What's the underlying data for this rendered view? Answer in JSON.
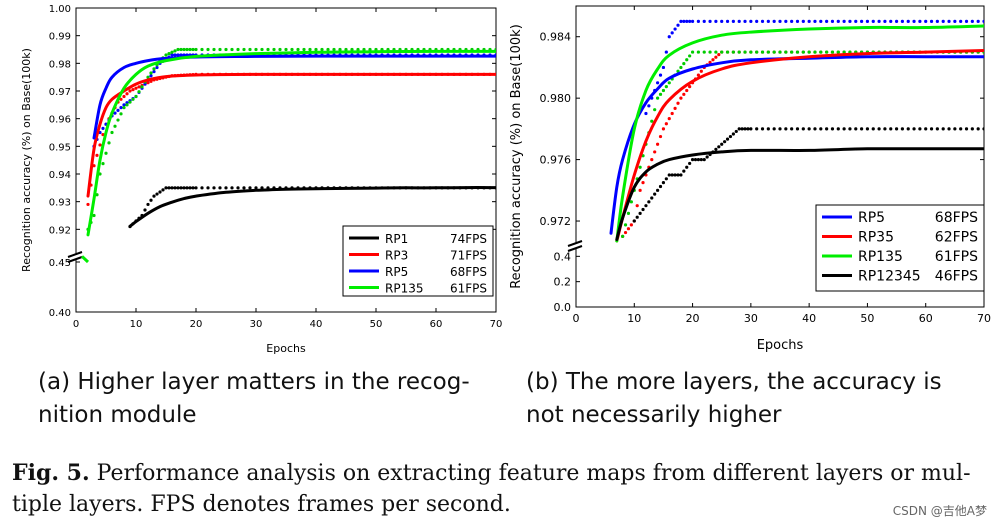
{
  "chart_data": [
    {
      "type": "line",
      "xlabel": "Epochs",
      "ylabel": "Recognition accuracy (%) on Base(100k)",
      "xlim": [
        0,
        70
      ],
      "x_ticks": [
        "0",
        "10",
        "20",
        "30",
        "40",
        "50",
        "60",
        "70"
      ],
      "y_upper_range": [
        0.91,
        1.0
      ],
      "y_upper_ticks": [
        "0.92",
        "0.93",
        "0.94",
        "0.95",
        "0.96",
        "0.97",
        "0.98",
        "0.99",
        "1.00"
      ],
      "y_lower_range": [
        0.4,
        0.45
      ],
      "y_lower_ticks": [
        "0.40",
        "0.45"
      ],
      "legend_position": "bottom-right",
      "grid": false,
      "series": [
        {
          "name": "RP1",
          "fps": "74FPS",
          "color": "#000000",
          "x": [
            9,
            10,
            12,
            14,
            16,
            18,
            20,
            25,
            30,
            35,
            40,
            45,
            50,
            55,
            60,
            65,
            70
          ],
          "values": [
            0.9211,
            0.9228,
            0.9258,
            0.9282,
            0.9298,
            0.9311,
            0.932,
            0.9334,
            0.9341,
            0.9345,
            0.9347,
            0.9348,
            0.9349,
            0.935,
            0.935,
            0.9351,
            0.9351
          ]
        },
        {
          "name": "RP3",
          "fps": "71FPS",
          "color": "#ff0000",
          "x": [
            2,
            3,
            4,
            5,
            6,
            8,
            10,
            12,
            15,
            20,
            30,
            40,
            50,
            60,
            70
          ],
          "values": [
            0.932,
            0.949,
            0.958,
            0.964,
            0.967,
            0.97,
            0.9725,
            0.974,
            0.9752,
            0.9758,
            0.976,
            0.976,
            0.976,
            0.976,
            0.976
          ]
        },
        {
          "name": "RP5",
          "fps": "68FPS",
          "color": "#0000ff",
          "x": [
            3,
            4,
            5,
            6,
            8,
            10,
            12,
            15,
            20,
            30,
            40,
            50,
            60,
            70
          ],
          "values": [
            0.953,
            0.965,
            0.971,
            0.975,
            0.9785,
            0.98,
            0.981,
            0.9818,
            0.9823,
            0.9825,
            0.9826,
            0.9826,
            0.9826,
            0.9826
          ]
        },
        {
          "name": "RP135",
          "fps": "61FPS",
          "color": "#00ee00",
          "x": [
            1,
            2,
            3,
            4,
            5,
            6,
            8,
            10,
            12,
            15,
            20,
            30,
            40,
            50,
            60,
            70
          ],
          "values": [
            0.4557,
            0.918,
            0.931,
            0.945,
            0.955,
            0.962,
            0.971,
            0.976,
            0.979,
            0.981,
            0.9825,
            0.9835,
            0.984,
            0.9842,
            0.9843,
            0.9843
          ]
        }
      ],
      "dotted_series": [
        {
          "color": "#000000",
          "x": [
            9,
            11,
            12,
            13,
            15,
            17,
            20,
            25,
            30,
            35,
            40,
            45,
            50,
            55,
            60,
            65,
            70
          ],
          "values": [
            0.921,
            0.925,
            0.929,
            0.932,
            0.935,
            0.935,
            0.935,
            0.935,
            0.935,
            0.935,
            0.935,
            0.935,
            0.935,
            0.935,
            0.935,
            0.935,
            0.935
          ]
        },
        {
          "color": "#ff0000",
          "x": [
            2,
            3,
            5,
            7,
            9,
            11,
            13,
            16,
            20,
            25,
            30,
            40,
            50,
            60,
            70
          ],
          "values": [
            0.929,
            0.943,
            0.958,
            0.966,
            0.97,
            0.972,
            0.974,
            0.9755,
            0.976,
            0.976,
            0.976,
            0.976,
            0.976,
            0.976,
            0.976
          ]
        },
        {
          "color": "#0000ff",
          "x": [
            3,
            4,
            5,
            6,
            8,
            10,
            12,
            14,
            16,
            20,
            30,
            40,
            50,
            60,
            70
          ],
          "values": [
            0.95,
            0.955,
            0.958,
            0.961,
            0.965,
            0.968,
            0.974,
            0.98,
            0.983,
            0.983,
            0.983,
            0.983,
            0.983,
            0.983,
            0.983
          ]
        },
        {
          "color": "#00cc00",
          "x": [
            2,
            3,
            4,
            6,
            8,
            10,
            12,
            14,
            15,
            17,
            20,
            30,
            40,
            50,
            60,
            70
          ],
          "values": [
            0.92,
            0.925,
            0.94,
            0.955,
            0.964,
            0.968,
            0.975,
            0.981,
            0.983,
            0.985,
            0.985,
            0.985,
            0.985,
            0.985,
            0.985,
            0.985
          ]
        }
      ],
      "subcaption": [
        "(a) Higher layer matters in the recog-",
        "nition module"
      ]
    },
    {
      "type": "line",
      "xlabel": "Epochs",
      "ylabel": "Recognition accuracy (%) on Base(100k)",
      "xlim": [
        0,
        70
      ],
      "x_ticks": [
        "0",
        "10",
        "20",
        "30",
        "40",
        "50",
        "60",
        "70"
      ],
      "y_upper_range": [
        0.9707,
        0.986
      ],
      "y_upper_ticks": [
        "0.972",
        "0.976",
        "0.980",
        "0.984"
      ],
      "y_lower_range": [
        0.0,
        0.45
      ],
      "y_lower_ticks": [
        "0.0",
        "0.2",
        "0.4"
      ],
      "legend_position": "bottom-right",
      "grid": false,
      "series": [
        {
          "name": "RP5",
          "fps": "68FPS",
          "color": "#0000ff",
          "x": [
            6,
            7,
            8,
            10,
            12,
            14,
            16,
            20,
            25,
            30,
            40,
            50,
            60,
            70
          ],
          "values": [
            0.9712,
            0.9742,
            0.976,
            0.9783,
            0.9797,
            0.9806,
            0.9813,
            0.9819,
            0.9823,
            0.9825,
            0.9826,
            0.9827,
            0.9827,
            0.9827
          ]
        },
        {
          "name": "RP35",
          "fps": "62FPS",
          "color": "#ff0000",
          "x": [
            7,
            8,
            10,
            12,
            14,
            16,
            20,
            25,
            30,
            40,
            50,
            60,
            70
          ],
          "values": [
            0.9707,
            0.9722,
            0.975,
            0.9772,
            0.9788,
            0.9799,
            0.9811,
            0.9819,
            0.9823,
            0.9827,
            0.9829,
            0.983,
            0.9831
          ]
        },
        {
          "name": "RP135",
          "fps": "61FPS",
          "color": "#00ee00",
          "x": [
            7,
            8,
            10,
            12,
            14,
            16,
            20,
            25,
            30,
            40,
            50,
            60,
            70
          ],
          "values": [
            0.9707,
            0.9736,
            0.978,
            0.9805,
            0.9819,
            0.9828,
            0.9836,
            0.9841,
            0.9843,
            0.9845,
            0.9846,
            0.9846,
            0.9847
          ]
        },
        {
          "name": "RP12345",
          "fps": "46FPS",
          "color": "#000000",
          "x": [
            7,
            8,
            10,
            12,
            14,
            16,
            20,
            25,
            30,
            40,
            50,
            60,
            70
          ],
          "values": [
            0.9708,
            0.9722,
            0.9742,
            0.9752,
            0.9757,
            0.976,
            0.9763,
            0.9765,
            0.9766,
            0.9766,
            0.9767,
            0.9767,
            0.9767
          ]
        }
      ],
      "dotted_series": [
        {
          "color": "#0000ff",
          "x": [
            12,
            13,
            14,
            15,
            16,
            18,
            20,
            25,
            30,
            40,
            50,
            60,
            70
          ],
          "values": [
            0.979,
            0.98,
            0.981,
            0.982,
            0.984,
            0.985,
            0.985,
            0.985,
            0.985,
            0.985,
            0.985,
            0.985,
            0.985
          ]
        },
        {
          "color": "#ff0000",
          "x": [
            8,
            10,
            11,
            13,
            15,
            18,
            20,
            22,
            25,
            30,
            40,
            50,
            60,
            70
          ],
          "values": [
            0.971,
            0.972,
            0.974,
            0.976,
            0.978,
            0.98,
            0.981,
            0.982,
            0.983,
            0.983,
            0.983,
            0.983,
            0.983,
            0.983
          ]
        },
        {
          "color": "#00cc00",
          "x": [
            8,
            10,
            12,
            14,
            16,
            18,
            20,
            25,
            30,
            40,
            50,
            60,
            70
          ],
          "values": [
            0.971,
            0.974,
            0.977,
            0.98,
            0.981,
            0.982,
            0.983,
            0.983,
            0.983,
            0.983,
            0.983,
            0.983,
            0.983
          ]
        },
        {
          "color": "#000000",
          "x": [
            10,
            12,
            14,
            16,
            18,
            20,
            22,
            25,
            28,
            30,
            40,
            50,
            60,
            70
          ],
          "values": [
            0.972,
            0.973,
            0.974,
            0.975,
            0.975,
            0.976,
            0.976,
            0.977,
            0.978,
            0.978,
            0.978,
            0.978,
            0.978,
            0.978
          ]
        }
      ],
      "subcaption": [
        "(b) The more layers, the accuracy is",
        "not necessarily higher"
      ]
    }
  ],
  "caption": {
    "label": "Fig. 5.",
    "line1": "Performance analysis on extracting feature maps from different layers or mul-",
    "line2": "tiple layers. FPS denotes frames per second."
  },
  "watermark": "CSDN @吉他A梦"
}
